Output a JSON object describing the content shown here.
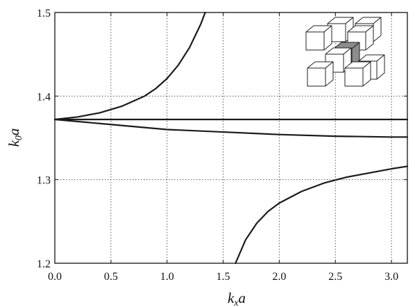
{
  "chart_data": {
    "type": "line",
    "title": "",
    "xlabel": "k",
    "xlabel_sub": "x",
    "xlabel_tail": "a",
    "ylabel": "k",
    "ylabel_sub": "0",
    "ylabel_tail": "a",
    "xlim": [
      0,
      3.14159
    ],
    "ylim": [
      1.2,
      1.5
    ],
    "xticks": [
      "0.0",
      "0.5",
      "1.0",
      "1.5",
      "2.0",
      "2.5",
      "3.0"
    ],
    "xtick_values": [
      0,
      0.5,
      1.0,
      1.5,
      2.0,
      2.5,
      3.0
    ],
    "yticks": [
      "1.2",
      "1.3",
      "1.4",
      "1.5"
    ],
    "ytick_values": [
      1.2,
      1.3,
      1.4,
      1.5
    ],
    "grid": true,
    "grid_style": "dotted",
    "legend": "none",
    "line_color": "#1a1a1a",
    "series": [
      {
        "x": [
          0,
          0.2,
          0.4,
          0.6,
          0.8,
          0.9,
          1.0,
          1.1,
          1.2,
          1.3,
          1.34
        ],
        "y": [
          1.372,
          1.375,
          1.38,
          1.388,
          1.4,
          1.409,
          1.421,
          1.437,
          1.458,
          1.486,
          1.5
        ]
      },
      {
        "x": [
          0,
          3.14159
        ],
        "y": [
          1.372,
          1.372
        ]
      },
      {
        "x": [
          0,
          0.25,
          0.5,
          0.75,
          1.0,
          1.5,
          2.0,
          2.5,
          3.0,
          3.14159
        ],
        "y": [
          1.372,
          1.369,
          1.366,
          1.363,
          1.36,
          1.357,
          1.354,
          1.352,
          1.351,
          1.351
        ]
      },
      {
        "x": [
          1.61,
          1.7,
          1.8,
          1.9,
          2.0,
          2.2,
          2.4,
          2.6,
          2.8,
          3.0,
          3.14159
        ],
        "y": [
          1.2,
          1.228,
          1.248,
          1.262,
          1.272,
          1.286,
          1.296,
          1.303,
          1.308,
          1.313,
          1.316
        ]
      }
    ]
  },
  "inset": {
    "icon": "cubic-lattice-cube-cluster-icon",
    "face_color": "#ffffff",
    "center_color": "#8c8c8c",
    "stroke_color": "#222222"
  }
}
